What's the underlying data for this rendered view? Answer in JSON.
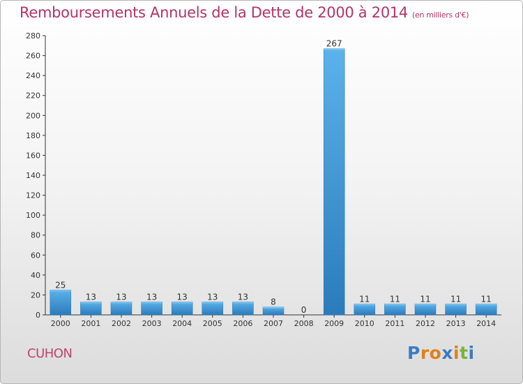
{
  "header": {
    "title": "Remboursements Annuels de la Dette de 2000 à 2014",
    "unit": "(en milliers d'€)"
  },
  "footer": {
    "commune": "CUHON",
    "logo": "Proxiti"
  },
  "colors": {
    "title": "#b2336a",
    "bar_light": "#5fb3ea",
    "bar_dark": "#2a7fc0",
    "logo_letters": [
      "#3a7cc5",
      "#e0801a",
      "#e0801a",
      "#3a7cc5",
      "#e0801a",
      "#78b33b",
      "#3a7cc5"
    ]
  },
  "chart_data": {
    "type": "bar",
    "title": "Remboursements Annuels de la Dette de 2000 à 2014",
    "subtitle": "(en milliers d'€)",
    "categories": [
      "2000",
      "2001",
      "2002",
      "2003",
      "2004",
      "2005",
      "2006",
      "2007",
      "2008",
      "2009",
      "2010",
      "2011",
      "2012",
      "2013",
      "2014"
    ],
    "values": [
      25,
      13,
      13,
      13,
      13,
      13,
      13,
      8,
      0,
      267,
      11,
      11,
      11,
      11,
      11
    ],
    "ylim": [
      0,
      280
    ],
    "yticks": [
      0,
      20,
      40,
      60,
      80,
      100,
      120,
      140,
      160,
      180,
      200,
      220,
      240,
      260,
      280
    ],
    "grid": false,
    "legend": "none"
  }
}
